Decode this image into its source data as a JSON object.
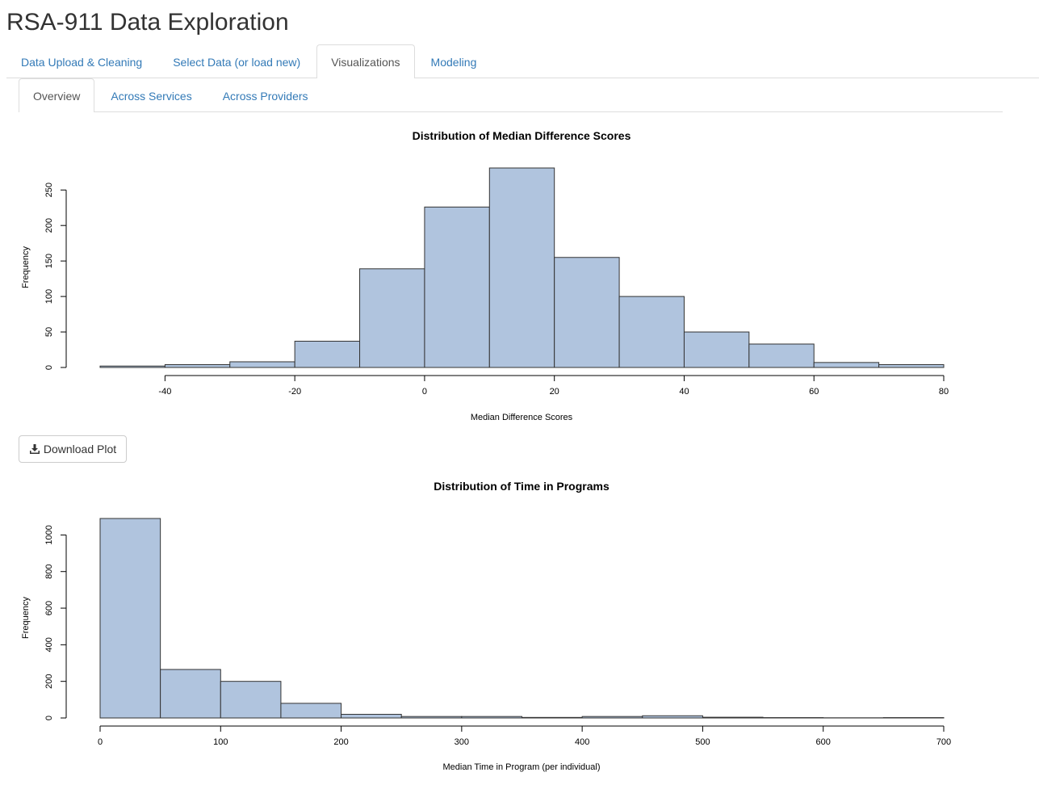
{
  "app": {
    "title": "RSA-911 Data Exploration"
  },
  "main_tabs": [
    {
      "label": "Data Upload & Cleaning",
      "active": false
    },
    {
      "label": "Select Data (or load new)",
      "active": false
    },
    {
      "label": "Visualizations",
      "active": true
    },
    {
      "label": "Modeling",
      "active": false
    }
  ],
  "sub_tabs": [
    {
      "label": "Overview",
      "active": true
    },
    {
      "label": "Across Services",
      "active": false
    },
    {
      "label": "Across Providers",
      "active": false
    }
  ],
  "download": {
    "label": "Download Plot",
    "icon": "download-icon"
  },
  "colors": {
    "bar_fill": "#b0c4de",
    "bar_stroke": "#333333",
    "tab_link": "#337ab7"
  },
  "chart_data": [
    {
      "type": "bar",
      "title": "Distribution of Median Difference Scores",
      "xlabel": "Median Difference Scores",
      "ylabel": "Frequency",
      "bin_edges": [
        -50,
        -40,
        -30,
        -20,
        -10,
        0,
        10,
        20,
        30,
        40,
        50,
        60,
        70,
        80
      ],
      "values": [
        2,
        4,
        8,
        37,
        139,
        226,
        281,
        155,
        100,
        50,
        33,
        7,
        4
      ],
      "xlim": [
        -50,
        80
      ],
      "ylim": [
        0,
        281
      ],
      "xticks": [
        -40,
        -20,
        0,
        20,
        40,
        60,
        80
      ],
      "yticks": [
        0,
        50,
        100,
        150,
        200,
        250
      ],
      "grid": false
    },
    {
      "type": "bar",
      "title": "Distribution of Time in Programs",
      "xlabel": "Median Time in Program (per individual)",
      "ylabel": "Frequency",
      "bin_edges": [
        0,
        50,
        100,
        150,
        200,
        250,
        300,
        350,
        400,
        450,
        500,
        550,
        600,
        650,
        700
      ],
      "values": [
        1090,
        265,
        200,
        80,
        20,
        8,
        8,
        3,
        8,
        12,
        4,
        2,
        1,
        2
      ],
      "xlim": [
        0,
        700
      ],
      "ylim": [
        0,
        1090
      ],
      "xticks": [
        0,
        100,
        200,
        300,
        400,
        500,
        600,
        700
      ],
      "yticks": [
        0,
        200,
        400,
        600,
        800,
        1000
      ],
      "grid": false
    }
  ]
}
